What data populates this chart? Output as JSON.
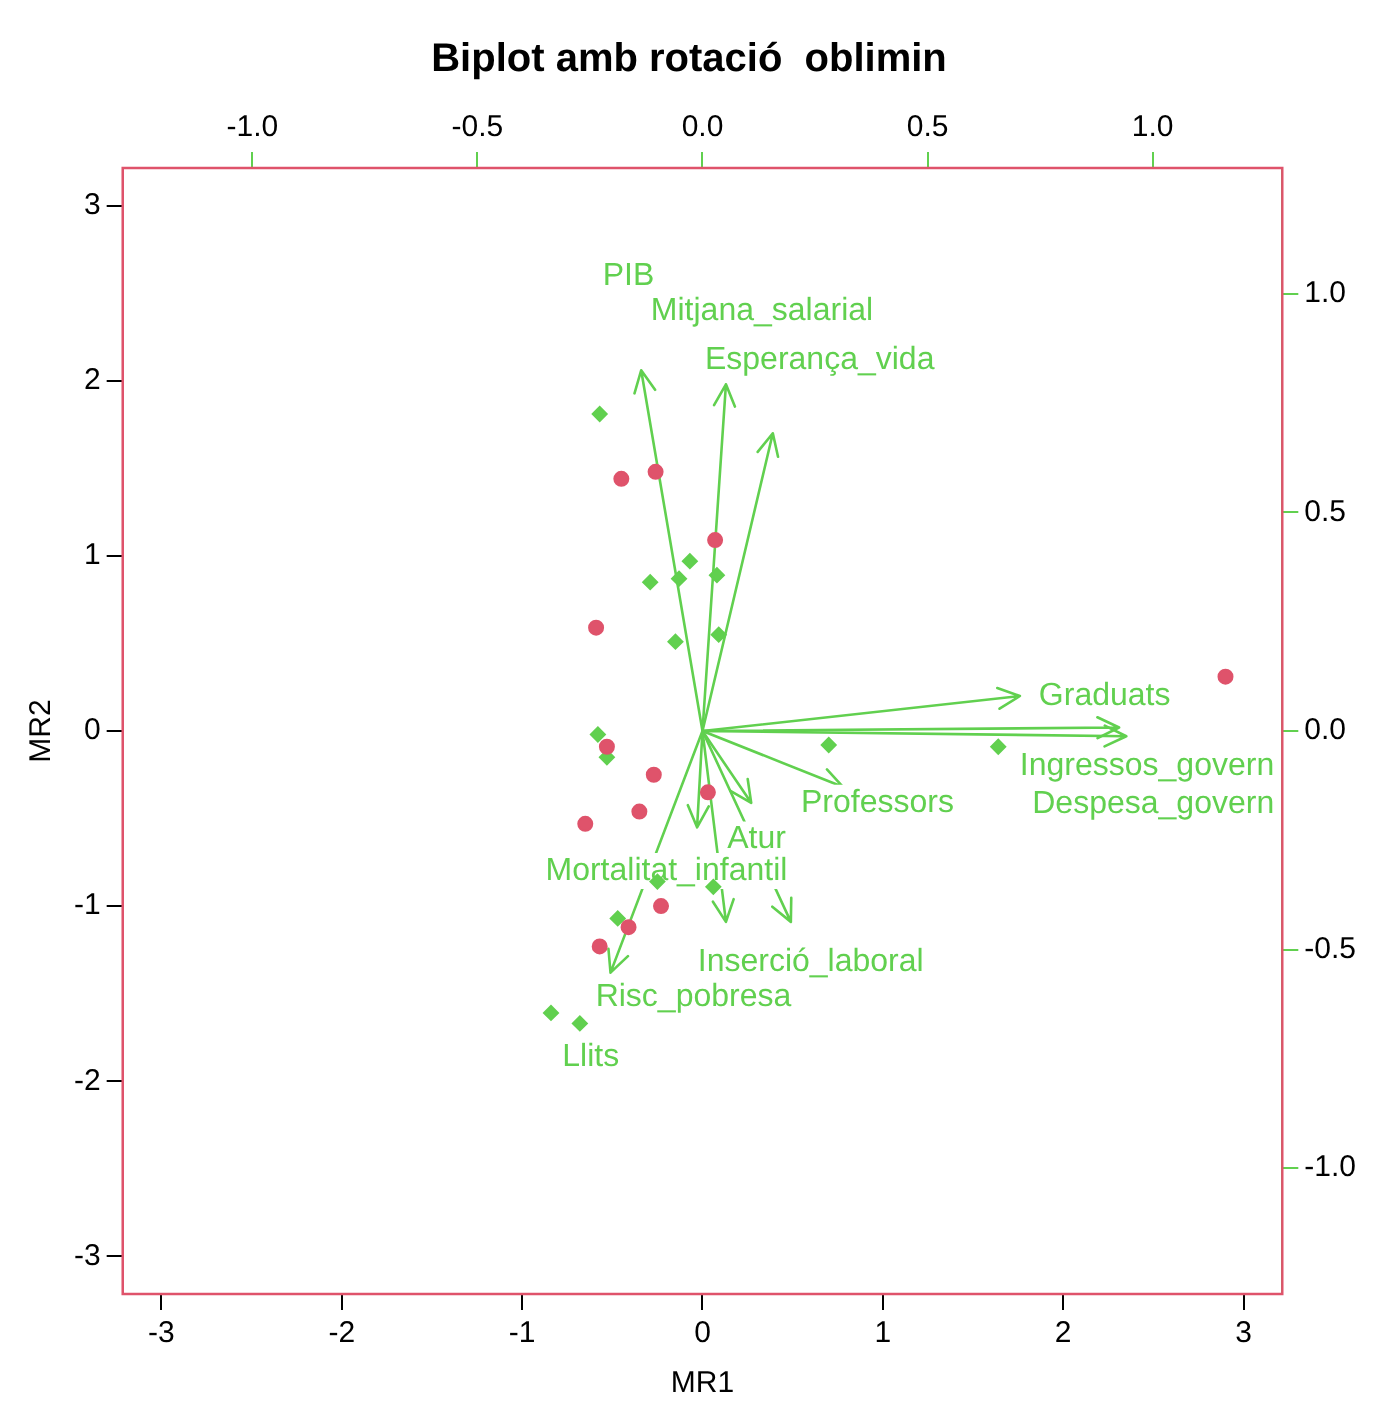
{
  "chart_data": {
    "type": "scatter",
    "title": "Biplot amb rotació  oblimin",
    "xlabel": "MR1",
    "ylabel": "MR2",
    "xlim": [
      -3.215,
      3.215
    ],
    "ylim": [
      -3.215,
      3.215
    ],
    "xticks": [
      -3,
      -2,
      -1,
      0,
      1,
      2,
      3
    ],
    "yticks": [
      -3,
      -2,
      -1,
      0,
      1,
      2,
      3
    ],
    "x2lim": [
      -1.288,
      1.288
    ],
    "y2lim": [
      -1.288,
      1.288
    ],
    "x2ticks": [
      {
        "value": -1,
        "label": "-1.0"
      },
      {
        "value": -0.5,
        "label": "-0.5"
      },
      {
        "value": 0,
        "label": "0.0"
      },
      {
        "value": 0.5,
        "label": "0.5"
      },
      {
        "value": 1,
        "label": "1.0"
      }
    ],
    "y2ticks": [
      {
        "value": -1,
        "label": "-1.0"
      },
      {
        "value": -0.5,
        "label": "-0.5"
      },
      {
        "value": 0,
        "label": "0.0"
      },
      {
        "value": 0.5,
        "label": "0.5"
      },
      {
        "value": 1,
        "label": "1.0"
      }
    ],
    "grid": false,
    "series": [
      {
        "marker": "circle",
        "color": "#df536b",
        "x": [
          -0.45,
          -0.26,
          0.07,
          -0.59,
          -0.53,
          -0.27,
          -0.35,
          -0.65,
          0.03,
          -0.23,
          -0.41,
          -0.57,
          2.9
        ],
        "values": [
          1.44,
          1.48,
          1.09,
          0.59,
          -0.09,
          -0.25,
          -0.46,
          -0.53,
          -0.35,
          -1.0,
          -1.12,
          -1.23,
          0.31
        ]
      },
      {
        "marker": "diamond",
        "color": "#61d04f",
        "x": [
          -0.57,
          -0.07,
          -0.29,
          -0.13,
          0.08,
          -0.15,
          0.09,
          -0.58,
          -0.53,
          -0.25,
          0.06,
          -0.47,
          -0.84,
          -0.68,
          0.7,
          1.64
        ],
        "values": [
          1.81,
          0.97,
          0.85,
          0.87,
          0.89,
          0.51,
          0.55,
          -0.02,
          -0.15,
          -0.86,
          -0.89,
          -1.07,
          -1.61,
          -1.67,
          -0.08,
          -0.09
        ]
      }
    ],
    "annotations": [
      "PIB",
      "Mitjana_salarial",
      "Esperança_vida",
      "Graduats",
      "Ingressos_govern",
      "Despesa_govern",
      "Professors",
      "Atur",
      "Mortalitat_infantil",
      "Inserció_laboral",
      "Risc_pobresa",
      "Llits"
    ]
  }
}
